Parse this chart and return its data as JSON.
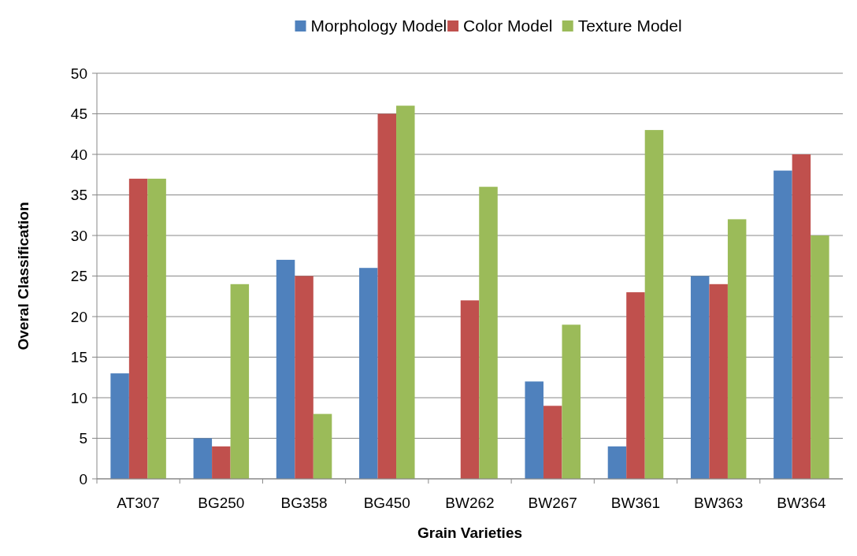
{
  "chart_data": {
    "type": "bar",
    "xlabel": "Grain Varieties",
    "ylabel": "Overal Classification",
    "categories": [
      "AT307",
      "BG250",
      "BG358",
      "BG450",
      "BW262",
      "BW267",
      "BW361",
      "BW363",
      "BW364"
    ],
    "series": [
      {
        "name": "Morphology Model",
        "color": "#4f81bd",
        "values": [
          13,
          5,
          27,
          26,
          0,
          12,
          4,
          25,
          38
        ]
      },
      {
        "name": "Color Model",
        "color": "#c0504d",
        "values": [
          37,
          4,
          25,
          45,
          22,
          9,
          23,
          24,
          40
        ]
      },
      {
        "name": "Texture Model",
        "color": "#9bbb59",
        "values": [
          37,
          24,
          8,
          46,
          36,
          19,
          43,
          32,
          30
        ]
      }
    ],
    "ylim": [
      0,
      50
    ],
    "yticks": [
      0,
      5,
      10,
      15,
      20,
      25,
      30,
      35,
      40,
      45,
      50
    ],
    "grid": "y",
    "legend": "top"
  }
}
